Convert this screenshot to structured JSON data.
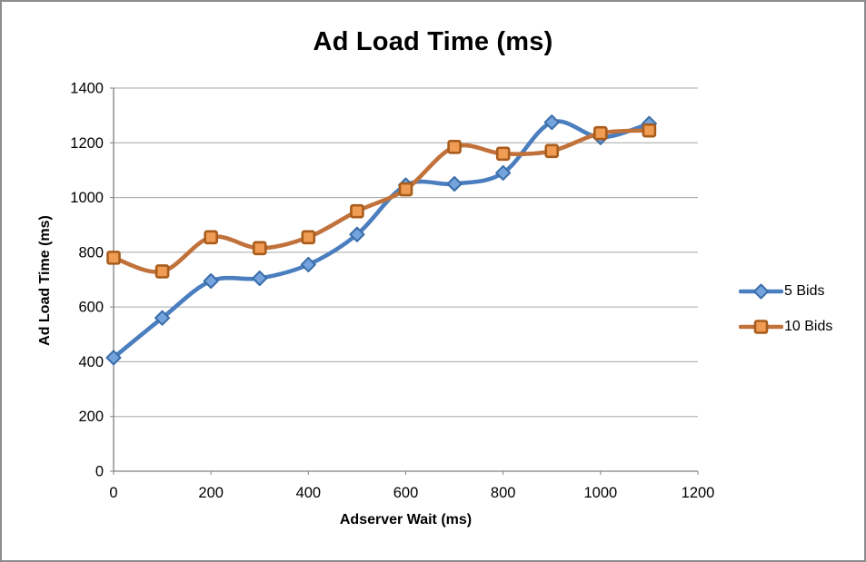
{
  "window": {
    "background": "#ffffff",
    "border_color": "#8c8c8c"
  },
  "chart_data": {
    "type": "line",
    "title": "Ad Load Time (ms)",
    "xlabel": "Adserver Wait (ms)",
    "ylabel": "Ad Load Time (ms)",
    "x": [
      0,
      100,
      200,
      300,
      400,
      500,
      600,
      700,
      800,
      900,
      1000,
      1100
    ],
    "series": [
      {
        "name": "5 Bids",
        "marker": "diamond",
        "line_color": "#4a7ebe",
        "marker_fill": "#74a3de",
        "marker_stroke": "#3a6da8",
        "values": [
          415,
          560,
          695,
          705,
          755,
          865,
          1045,
          1050,
          1090,
          1275,
          1220,
          1270
        ]
      },
      {
        "name": "10 Bids",
        "marker": "square",
        "line_color": "#c1713a",
        "marker_fill": "#f09c54",
        "marker_stroke": "#a85c1c",
        "values": [
          780,
          730,
          855,
          815,
          855,
          950,
          1030,
          1185,
          1160,
          1170,
          1235,
          1245
        ]
      }
    ],
    "xlim": [
      0,
      1200
    ],
    "ylim": [
      0,
      1400
    ],
    "x_ticks": [
      0,
      200,
      400,
      600,
      800,
      1000,
      1200
    ],
    "y_ticks": [
      0,
      200,
      400,
      600,
      800,
      1000,
      1200,
      1400
    ],
    "grid": "horizontal-major",
    "gridline_color": "#a6a6a6",
    "axis_line_color": "#808080",
    "tick_label_color": "#000000",
    "smoothed_lines": true,
    "legend_position": "right"
  }
}
